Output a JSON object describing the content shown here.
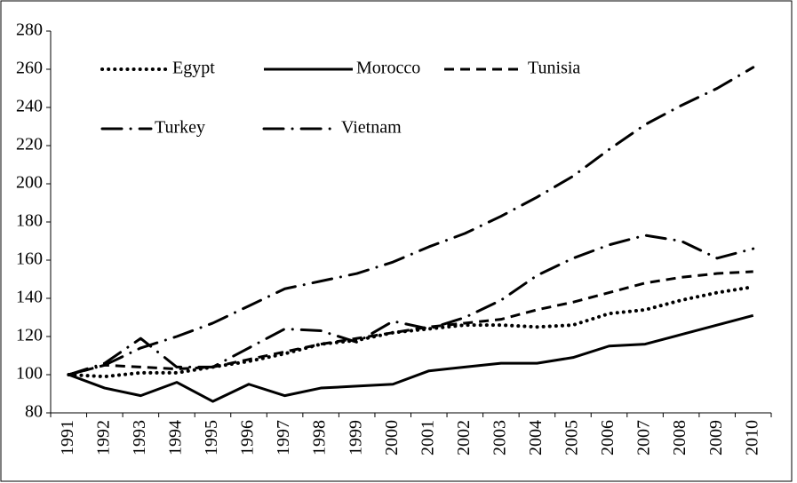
{
  "chart_data": {
    "type": "line",
    "categories": [
      "1991",
      "1992",
      "1993",
      "1994",
      "1995",
      "1996",
      "1997",
      "1998",
      "1999",
      "2000",
      "2001",
      "2002",
      "2003",
      "2004",
      "2005",
      "2006",
      "2007",
      "2008",
      "2009",
      "2010"
    ],
    "series": [
      {
        "name": "Egypt",
        "color": "#000000",
        "values": [
          100,
          99,
          101,
          101,
          104,
          107,
          111,
          116,
          118,
          122,
          124,
          126,
          126,
          125,
          126,
          132,
          134,
          139,
          143,
          146
        ]
      },
      {
        "name": "Morocco",
        "color": "#000000",
        "values": [
          100,
          93,
          89,
          96,
          86,
          95,
          89,
          93,
          94,
          95,
          102,
          104,
          106,
          106,
          109,
          115,
          116,
          121,
          126,
          131
        ]
      },
      {
        "name": "Tunisia",
        "color": "#000000",
        "values": [
          100,
          105,
          104,
          103,
          104,
          108,
          112,
          116,
          119,
          122,
          125,
          127,
          129,
          134,
          138,
          143,
          148,
          151,
          153,
          154
        ]
      },
      {
        "name": "Turkey",
        "color": "#000000",
        "values": [
          100,
          106,
          119,
          104,
          104,
          114,
          124,
          123,
          117,
          128,
          124,
          130,
          139,
          152,
          161,
          168,
          173,
          170,
          161,
          166
        ]
      },
      {
        "name": "Vietnam",
        "color": "#000000",
        "values": [
          100,
          105,
          114,
          120,
          127,
          136,
          145,
          149,
          153,
          159,
          167,
          174,
          183,
          193,
          204,
          218,
          231,
          241,
          250,
          261
        ]
      }
    ],
    "ylim": [
      80,
      280
    ],
    "yticks": [
      80,
      100,
      120,
      140,
      160,
      180,
      200,
      220,
      240,
      260,
      280
    ],
    "grid": false
  }
}
